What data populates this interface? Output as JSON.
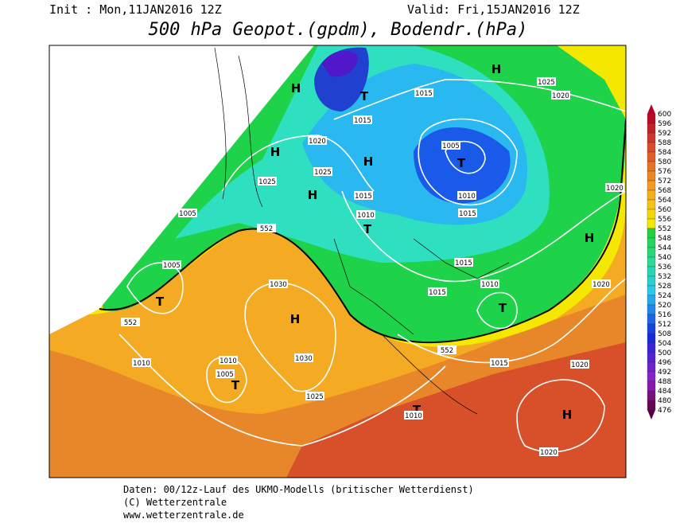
{
  "header": {
    "init": "Init : Mon,11JAN2016 12Z",
    "valid": "Valid: Fri,15JAN2016 12Z",
    "title": "500 hPa Geopot.(gpdm), Bodendr.(hPa)"
  },
  "colorbar_levels": [
    600,
    596,
    592,
    588,
    584,
    580,
    576,
    572,
    568,
    564,
    560,
    556,
    552,
    548,
    544,
    540,
    536,
    532,
    528,
    524,
    520,
    516,
    512,
    508,
    504,
    500,
    496,
    492,
    488,
    484,
    480,
    476
  ],
  "centers": [
    "H",
    "H",
    "T",
    "H",
    "H",
    "H",
    "T",
    "T",
    "H",
    "T",
    "H",
    "T",
    "T",
    "T",
    "H"
  ],
  "isobar_labels": [
    1025,
    1020,
    1015,
    1015,
    1020,
    1005,
    1025,
    1025,
    1020,
    1015,
    1010,
    1005,
    1010,
    1015,
    552,
    1005,
    1015,
    1010,
    1030,
    1020,
    1015,
    552,
    1010,
    1030,
    1010,
    1005,
    552,
    1015,
    1020,
    1025,
    1010,
    1020
  ],
  "footer": [
    "Daten: 00/12z-Lauf des UKMO-Modells (britischer Wetterdienst)",
    "(C) Wetterzentrale",
    "www.wetterzentrale.de"
  ]
}
